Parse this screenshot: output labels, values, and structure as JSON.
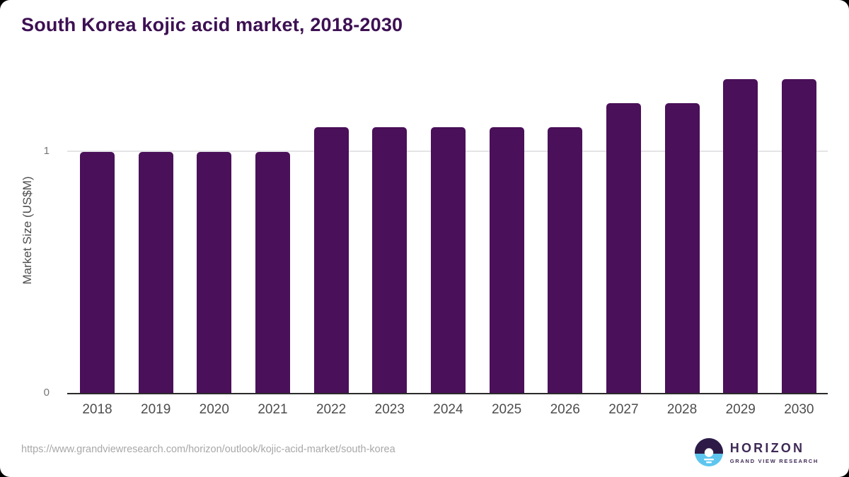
{
  "colors": {
    "bar": "#4a1059",
    "title": "#3d1053",
    "axis_line": "#2b2b2b",
    "gridline": "#e4e4e7",
    "tick_label": "#757575",
    "axis_label": "#4d4d4d",
    "url": "#a8a8a8",
    "logo_purple": "#3f2a56",
    "logo_blue": "#5ec6ee",
    "logo_dark": "#2e1a47"
  },
  "chart_data": {
    "type": "bar",
    "title": "South Korea kojic acid market, 2018-2030",
    "categories": [
      "2018",
      "2019",
      "2020",
      "2021",
      "2022",
      "2023",
      "2024",
      "2025",
      "2026",
      "2027",
      "2028",
      "2029",
      "2030"
    ],
    "values": [
      1.0,
      1.0,
      1.0,
      1.0,
      1.1,
      1.1,
      1.1,
      1.1,
      1.1,
      1.2,
      1.2,
      1.3,
      1.3
    ],
    "xlabel": "",
    "ylabel": "Market Size (US$M)",
    "yticks": [
      0,
      1
    ],
    "ylim": [
      0,
      1.35
    ],
    "grid": "horizontal-at-1-only",
    "legend": "none"
  },
  "footer": {
    "source_url": "https://www.grandviewresearch.com/horizon/outlook/kojic-acid-market/south-korea",
    "logo": {
      "name": "HORIZON",
      "tagline": "GRAND VIEW RESEARCH"
    }
  }
}
